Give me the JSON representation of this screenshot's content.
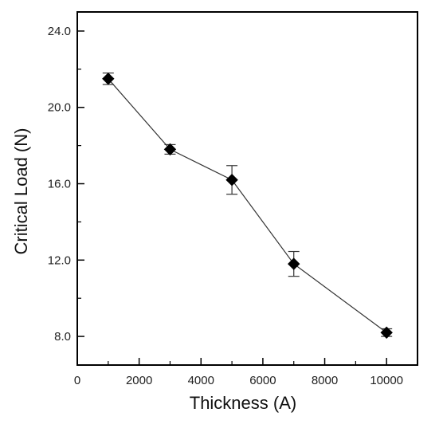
{
  "chart_data": {
    "type": "scatter",
    "xlabel": "Thickness (A)",
    "ylabel": "Critical Load (N)",
    "xlim": [
      0,
      11000
    ],
    "ylim": [
      6.5,
      25.0
    ],
    "x_ticks": [
      0,
      2000,
      4000,
      6000,
      8000,
      10000
    ],
    "x_tick_labels": [
      "0",
      "2000",
      "4000",
      "6000",
      "8000",
      "10000"
    ],
    "y_ticks": [
      8,
      12,
      16,
      20,
      24
    ],
    "y_tick_labels": [
      "8.0",
      "12.0",
      "16.0",
      "20.0",
      "24.0"
    ],
    "grid": false,
    "legend": "none",
    "marker": "diamond",
    "connected_line": true,
    "series": [
      {
        "x": [
          1000,
          3000,
          5000,
          7000,
          10000
        ],
        "y": [
          21.5,
          17.8,
          16.2,
          11.8,
          8.2
        ],
        "error": [
          0.3,
          0.25,
          0.75,
          0.65,
          0.2
        ]
      }
    ],
    "colors": {
      "marker": "#000000",
      "line": "#333333",
      "axis": "#000000"
    }
  }
}
